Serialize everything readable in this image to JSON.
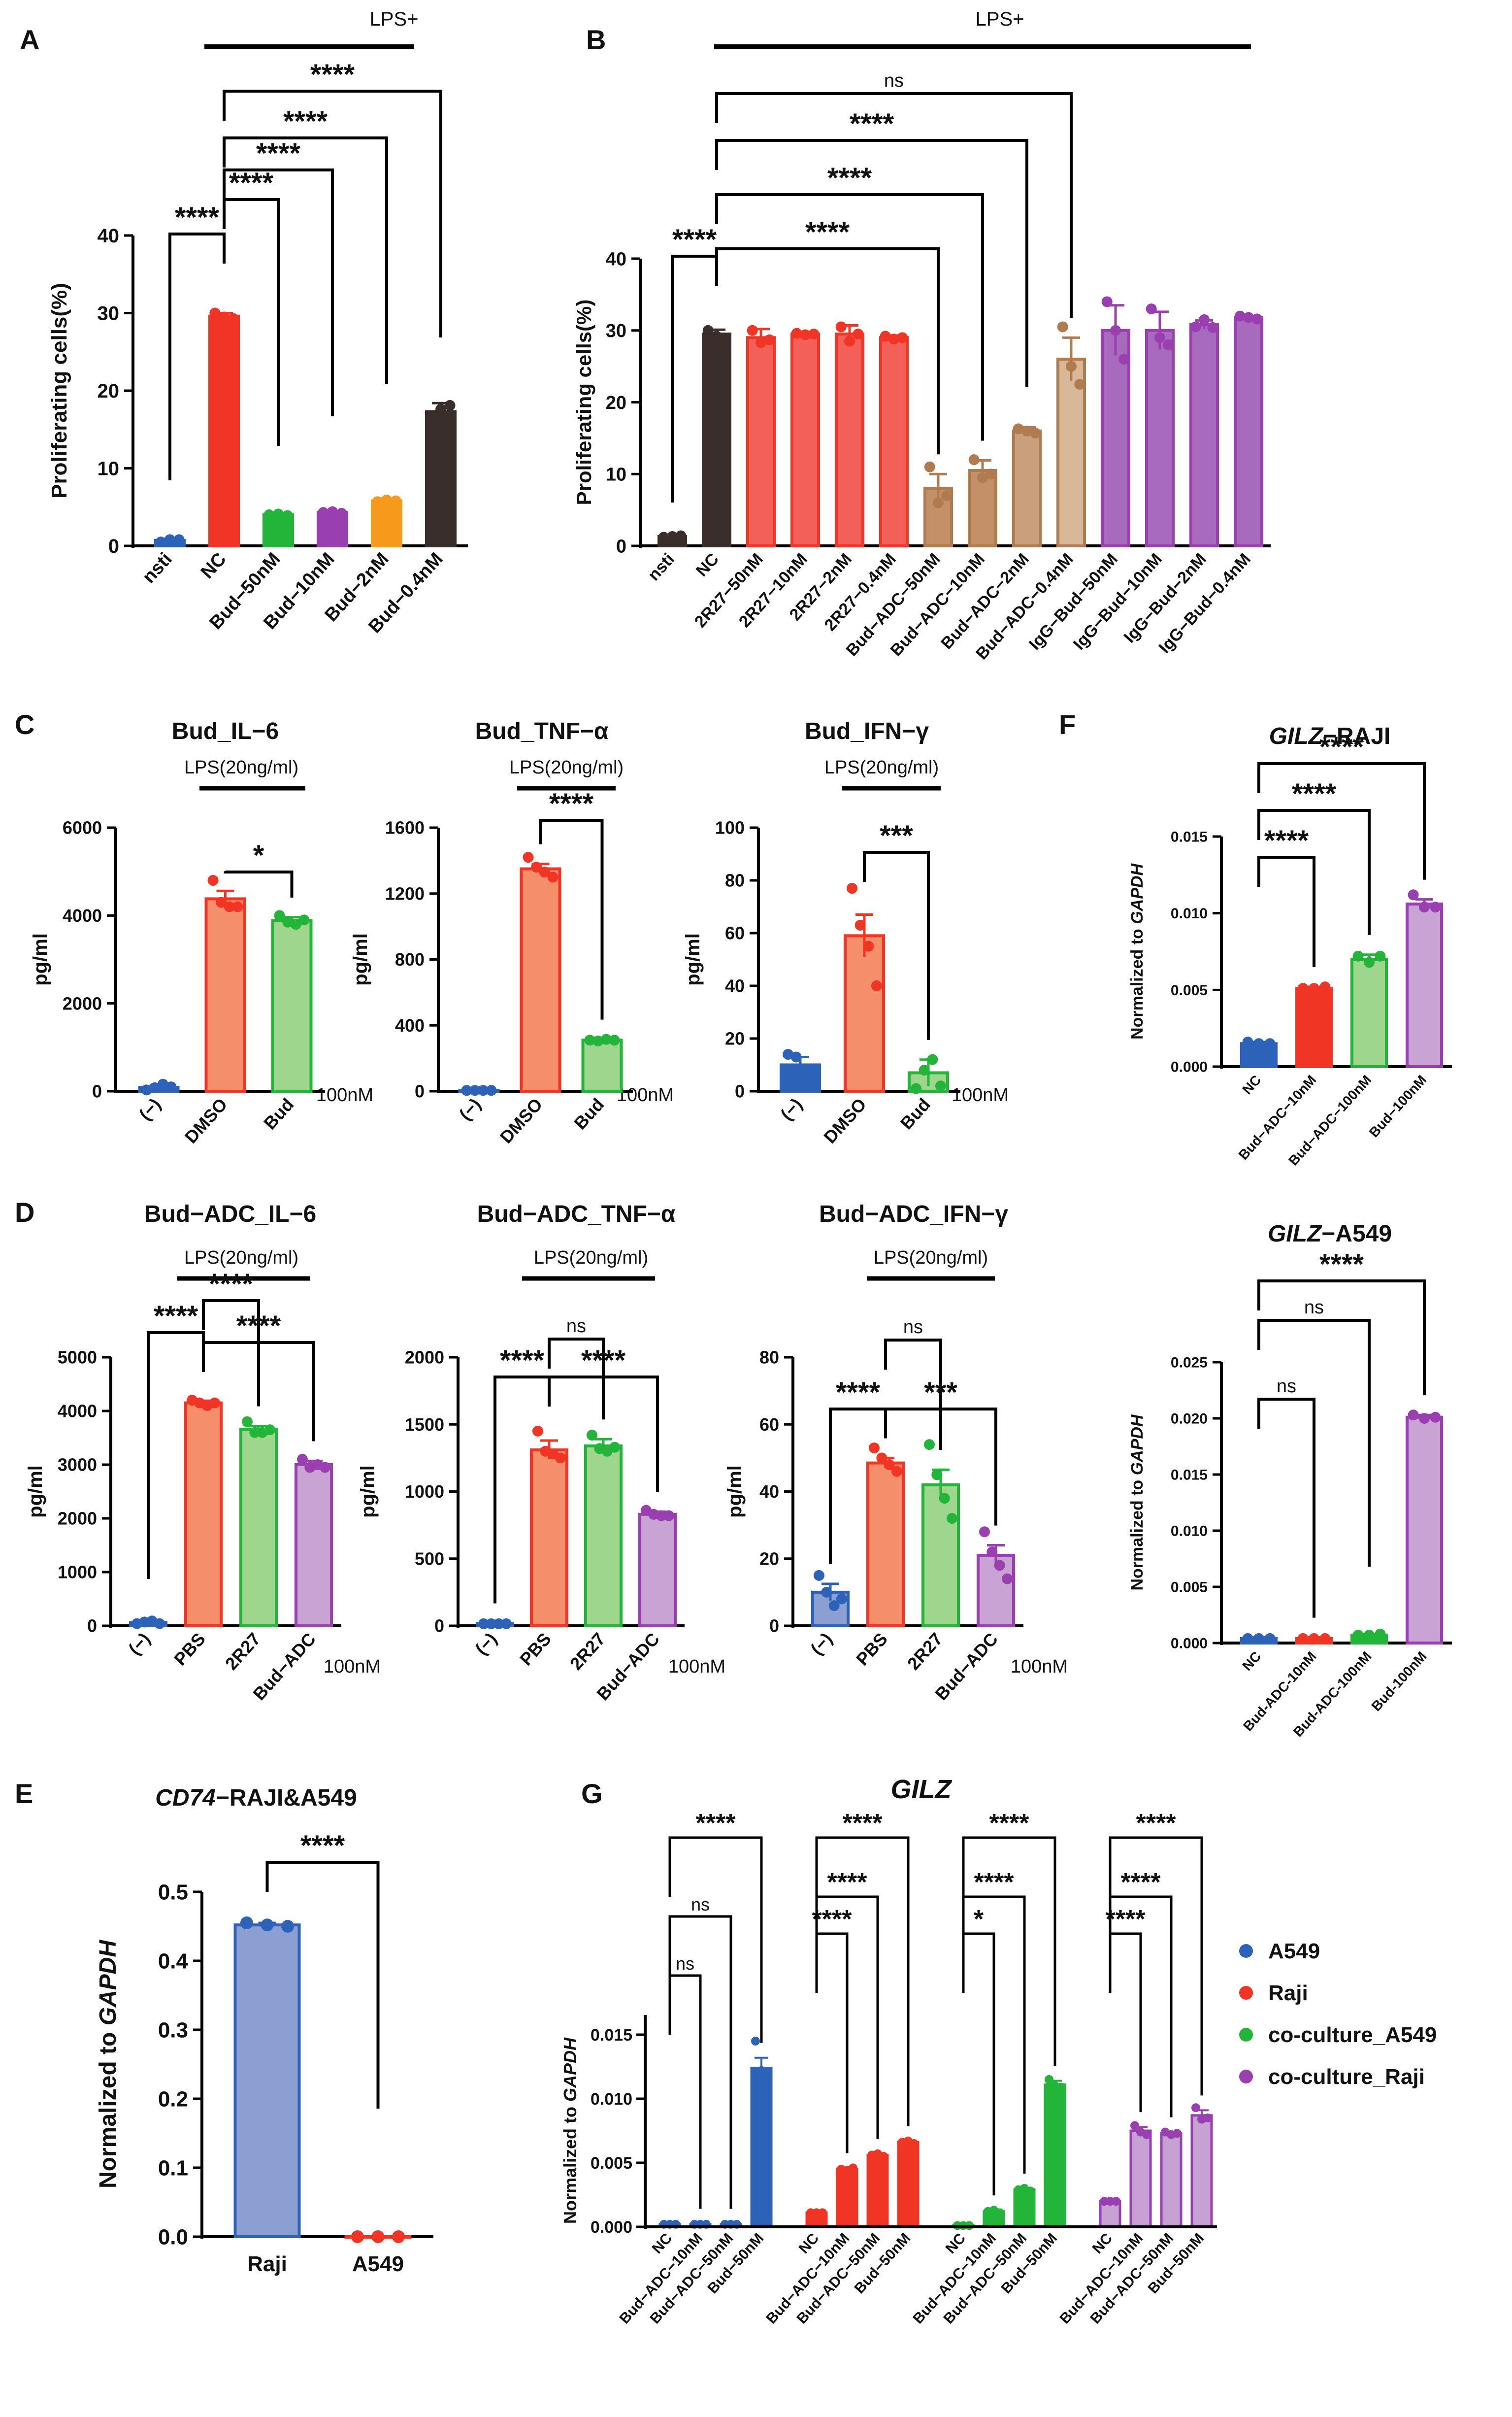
{
  "panel_letters": [
    "A",
    "B",
    "C",
    "D",
    "E",
    "F",
    "G"
  ],
  "common": {
    "lps_plus": "LPS+",
    "lps_20": "LPS(20ng/ml)",
    "unit_100nm": "100nM",
    "ylabel_prolif": "Proliferating cells(%)",
    "ylabel_pgml": "pg/ml",
    "ylabel_gapdh_prefix": "Normalized to ",
    "gapdh": "GAPDH"
  },
  "colors": {
    "blue": "#2c63b8",
    "red": "#f03524",
    "green": "#22b53a",
    "purple": "#9a3fb0",
    "orange": "#f79a1c",
    "dark": "#3a2e2c",
    "brown": "#b07c4f",
    "salmon_fill": "#f58e6b",
    "lightgreen_fill": "#9fd68e",
    "lightpurple_fill": "#c9a3d3",
    "blue_fill": "#8b9fd3",
    "red_fill": "#fb8c84",
    "green_fill": "#8cd68e",
    "purple_fill": "#c7a0d4"
  },
  "chart_data": [
    {
      "id": "A",
      "type": "bar",
      "title": "",
      "ylabel": "Proliferating cells(%)",
      "ylim": [
        0,
        40
      ],
      "yticks": [
        0,
        10,
        20,
        30,
        40
      ],
      "categories": [
        "nsti",
        "NC",
        "Bud-50nM",
        "Bud-10nM",
        "Bud-2nM",
        "Bud-0.4nM"
      ],
      "category_labels": [
        "nsti",
        "NC",
        "Bud−50nM",
        "Bud−10nM",
        "Bud−2nM",
        "Bud−0.4nM"
      ],
      "values": [
        0.7,
        29.6,
        4.0,
        4.3,
        5.8,
        17.3
      ],
      "errors": [
        0.2,
        0.4,
        0.2,
        0.2,
        0.3,
        1.1
      ],
      "points": [
        [
          0.5,
          0.8,
          0.8
        ],
        [
          30.0,
          29.5,
          29.3
        ],
        [
          4.0,
          4.1,
          3.9
        ],
        [
          4.3,
          4.4,
          4.2
        ],
        [
          5.7,
          5.9,
          5.8
        ],
        [
          16.2,
          17.6,
          18.1
        ]
      ],
      "significance": [
        {
          "label": "****",
          "from": "nsti",
          "to": "NC"
        },
        {
          "label": "****",
          "from": "NC",
          "to": "Bud-50nM"
        },
        {
          "label": "****",
          "from": "NC",
          "to": "Bud-10nM"
        },
        {
          "label": "****",
          "from": "NC",
          "to": "Bud-2nM"
        },
        {
          "label": "****",
          "from": "NC",
          "to": "Bud-0.4nM"
        }
      ],
      "annotations": [
        "LPS+"
      ]
    },
    {
      "id": "B",
      "type": "bar",
      "title": "",
      "ylabel": "Proliferating cells(%)",
      "ylim": [
        0,
        40
      ],
      "yticks": [
        0,
        10,
        20,
        30,
        40
      ],
      "categories": [
        "nsti",
        "NC",
        "2R27-50nM",
        "2R27-10nM",
        "2R27-2nM",
        "2R27-0.4nM",
        "Bud-ADC-50nM",
        "Bud-ADC-10nM",
        "Bud-ADC-2nM",
        "Bud-ADC-0.4nM",
        "IgG-Bud-50nM",
        "IgG-Bud-10nM",
        "IgG-Bud-2nM",
        "IgG-Bud-0.4nM"
      ],
      "category_labels": [
        "nsti",
        "NC",
        "2R27−50nM",
        "2R27−10nM",
        "2R27−2nM",
        "2R27−0.4nM",
        "Bud−ADC−50nM",
        "Bud−ADC−10nM",
        "Bud−ADC−2nM",
        "Bud−ADC−0.4nM",
        "IgG−Bud−50nM",
        "IgG−Bud−10nM",
        "IgG−Bud−2nM",
        "IgG−Bud−0.4nM"
      ],
      "values": [
        1.3,
        29.5,
        29.0,
        29.5,
        29.5,
        29.0,
        8.0,
        10.5,
        16.0,
        26.0,
        30.0,
        30.0,
        30.8,
        31.8
      ],
      "errors": [
        0.2,
        0.6,
        1.2,
        0.2,
        1.2,
        0.3,
        2.0,
        1.4,
        0.5,
        3.0,
        3.5,
        2.6,
        0.6,
        0.2
      ],
      "points": [
        [
          1.2,
          1.3,
          1.4
        ],
        [
          30.0,
          29.2,
          28.8
        ],
        [
          30.0,
          28.3,
          28.7
        ],
        [
          29.6,
          29.4,
          29.5
        ],
        [
          30.5,
          28.5,
          29.5
        ],
        [
          29.2,
          28.8,
          29.0
        ],
        [
          11.0,
          6.0,
          7.0
        ],
        [
          12.0,
          9.5,
          10.0
        ],
        [
          16.3,
          16.0,
          15.7
        ],
        [
          30.5,
          25.0,
          22.5
        ],
        [
          34.0,
          30.0,
          26.0
        ],
        [
          33.0,
          29.0,
          28.0
        ],
        [
          30.5,
          31.5,
          30.4
        ],
        [
          32.0,
          31.8,
          31.6
        ]
      ],
      "significance": [
        {
          "label": "****",
          "from": "nsti",
          "to": "NC"
        },
        {
          "label": "****",
          "from": "NC",
          "to": "Bud-ADC-50nM"
        },
        {
          "label": "****",
          "from": "NC",
          "to": "Bud-ADC-10nM"
        },
        {
          "label": "****",
          "from": "NC",
          "to": "Bud-ADC-2nM"
        },
        {
          "label": "ns",
          "from": "NC",
          "to": "Bud-ADC-0.4nM"
        }
      ],
      "annotations": [
        "LPS+"
      ]
    },
    {
      "id": "C1",
      "type": "bar",
      "title": "Bud_IL−6",
      "ylabel": "pg/ml",
      "ylim": [
        0,
        6000
      ],
      "yticks": [
        0,
        2000,
        4000,
        6000
      ],
      "categories": [
        "(−)",
        "DMSO",
        "Bud"
      ],
      "values": [
        90,
        4380,
        3880
      ],
      "errors": [
        50,
        180,
        80
      ],
      "points": [
        [
          30,
          80,
          160,
          100
        ],
        [
          4800,
          4300,
          4200,
          4200
        ],
        [
          4000,
          3850,
          3800,
          3900
        ]
      ],
      "significance": [
        {
          "label": "*",
          "from": "DMSO",
          "to": "Bud"
        }
      ],
      "annotations": [
        "LPS(20ng/ml)",
        "100nM"
      ]
    },
    {
      "id": "C2",
      "type": "bar",
      "title": "Bud_TNF−α",
      "ylabel": "pg/ml",
      "ylim": [
        0,
        1600
      ],
      "yticks": [
        0,
        400,
        800,
        1200,
        1600
      ],
      "categories": [
        "(−)",
        "DMSO",
        "Bud"
      ],
      "values": [
        5,
        1350,
        310
      ],
      "errors": [
        2,
        30,
        5
      ],
      "points": [
        [
          5,
          5,
          5,
          5
        ],
        [
          1420,
          1360,
          1330,
          1300
        ],
        [
          310,
          305,
          315,
          310
        ]
      ],
      "significance": [
        {
          "label": "****",
          "from": "DMSO",
          "to": "Bud"
        }
      ],
      "annotations": [
        "LPS(20ng/ml)",
        "100nM"
      ]
    },
    {
      "id": "C3",
      "type": "bar",
      "title": "Bud_IFN−γ",
      "ylabel": "pg/ml",
      "ylim": [
        0,
        100
      ],
      "yticks": [
        0,
        20,
        40,
        60,
        80,
        100
      ],
      "categories": [
        "(−)",
        "DMSO",
        "Bud"
      ],
      "values": [
        10,
        59,
        7
      ],
      "errors": [
        3,
        8,
        5
      ],
      "points": [
        [
          14,
          13,
          6,
          8
        ],
        [
          77,
          63,
          55,
          40
        ],
        [
          1,
          8,
          12,
          2
        ]
      ],
      "significance": [
        {
          "label": "***",
          "from": "DMSO",
          "to": "Bud"
        }
      ],
      "annotations": [
        "LPS(20ng/ml)",
        "100nM"
      ]
    },
    {
      "id": "D1",
      "type": "bar",
      "title": "Bud−ADC_IL−6",
      "ylabel": "pg/ml",
      "ylim": [
        0,
        5000
      ],
      "yticks": [
        0,
        1000,
        2000,
        3000,
        4000,
        5000
      ],
      "categories": [
        "(−)",
        "PBS",
        "2R27",
        "Bud−ADC"
      ],
      "values": [
        60,
        4150,
        3660,
        3000
      ],
      "errors": [
        30,
        40,
        60,
        70
      ],
      "points": [
        [
          40,
          70,
          90,
          40
        ],
        [
          4200,
          4150,
          4100,
          4150
        ],
        [
          3800,
          3600,
          3600,
          3650
        ],
        [
          3100,
          2950,
          3000,
          2950
        ]
      ],
      "significance": [
        {
          "label": "****",
          "from": "(−)",
          "to": "PBS"
        },
        {
          "label": "****",
          "from": "PBS",
          "to": "2R27"
        },
        {
          "label": "****",
          "from": "PBS",
          "to": "Bud−ADC"
        }
      ],
      "annotations": [
        "LPS(20ng/ml)",
        "100nM"
      ]
    },
    {
      "id": "D2",
      "type": "bar",
      "title": "Bud−ADC_TNF−α",
      "ylabel": "pg/ml",
      "ylim": [
        0,
        2000
      ],
      "yticks": [
        0,
        500,
        1000,
        1500,
        2000
      ],
      "categories": [
        "(−)",
        "PBS",
        "2R27",
        "Bud−ADC"
      ],
      "values": [
        15,
        1310,
        1340,
        830
      ],
      "errors": [
        5,
        70,
        50,
        20
      ],
      "points": [
        [
          15,
          15,
          15,
          15
        ],
        [
          1450,
          1300,
          1280,
          1250
        ],
        [
          1420,
          1320,
          1300,
          1330
        ],
        [
          860,
          830,
          820,
          820
        ]
      ],
      "significance": [
        {
          "label": "****",
          "from": "(−)",
          "to": "PBS"
        },
        {
          "label": "ns",
          "from": "PBS",
          "to": "2R27"
        },
        {
          "label": "****",
          "from": "PBS",
          "to": "Bud−ADC"
        }
      ],
      "annotations": [
        "LPS(20ng/ml)",
        "100nM"
      ]
    },
    {
      "id": "D3",
      "type": "bar",
      "title": "Bud−ADC_IFN−γ",
      "ylabel": "pg/ml",
      "ylim": [
        0,
        80
      ],
      "yticks": [
        0,
        20,
        40,
        60,
        80
      ],
      "categories": [
        "(−)",
        "PBS",
        "2R27",
        "Bud−ADC"
      ],
      "values": [
        10,
        48.5,
        42,
        21
      ],
      "errors": [
        2.5,
        1.5,
        4.5,
        3.0
      ],
      "points": [
        [
          15,
          10,
          6,
          8
        ],
        [
          53,
          50,
          48,
          46
        ],
        [
          54,
          45,
          38,
          32
        ],
        [
          28,
          22,
          18,
          14
        ]
      ],
      "significance": [
        {
          "label": "****",
          "from": "(−)",
          "to": "PBS"
        },
        {
          "label": "ns",
          "from": "PBS",
          "to": "2R27"
        },
        {
          "label": "***",
          "from": "PBS",
          "to": "Bud−ADC"
        }
      ],
      "annotations": [
        "LPS(20ng/ml)",
        "100nM"
      ]
    },
    {
      "id": "E",
      "type": "bar",
      "title": "CD74−RAJI&A549",
      "ylabel": "Normalized to GAPDH",
      "ylim": [
        0,
        0.5
      ],
      "yticks": [
        0.0,
        0.1,
        0.2,
        0.3,
        0.4,
        0.5
      ],
      "categories": [
        "Raji",
        "A549"
      ],
      "values": [
        0.452,
        0.0
      ],
      "errors": [
        0.003,
        0.0
      ],
      "points": [
        [
          0.455,
          0.452,
          0.45
        ],
        [
          0.0,
          0.0,
          0.0
        ]
      ],
      "significance": [
        {
          "label": "****",
          "from": "Raji",
          "to": "A549"
        }
      ]
    },
    {
      "id": "F1",
      "type": "bar",
      "title": "GILZ−RAJI",
      "ylabel": "Normalized to GAPDH",
      "ylim": [
        0,
        0.015
      ],
      "yticks": [
        0.0,
        0.005,
        0.01,
        0.015
      ],
      "categories": [
        "NC",
        "Bud−ADC−10nM",
        "Bud−ADC−100nM",
        "Bud−100nM"
      ],
      "values": [
        0.0015,
        0.0051,
        0.007,
        0.0106
      ],
      "errors": [
        0.0001,
        0.0001,
        0.0003,
        0.0003
      ],
      "points": [
        [
          0.0016,
          0.0015,
          0.0015
        ],
        [
          0.0051,
          0.0051,
          0.0052
        ],
        [
          0.0072,
          0.0068,
          0.0072
        ],
        [
          0.0112,
          0.0104,
          0.0104
        ]
      ],
      "significance": [
        {
          "label": "****",
          "from": "NC",
          "to": "Bud−ADC−10nM"
        },
        {
          "label": "****",
          "from": "NC",
          "to": "Bud−ADC−100nM"
        },
        {
          "label": "****",
          "from": "NC",
          "to": "Bud−100nM"
        }
      ]
    },
    {
      "id": "F2",
      "type": "bar",
      "title": "GILZ−A549",
      "ylabel": "Normalized to GAPDH",
      "ylim": [
        0,
        0.025
      ],
      "yticks": [
        0.0,
        0.005,
        0.01,
        0.015,
        0.02,
        0.025
      ],
      "categories": [
        "NC",
        "Bud-ADC-10nM",
        "Bud-ADC-100nM",
        "Bud-100nM"
      ],
      "values": [
        0.0004,
        0.0004,
        0.0007,
        0.0201
      ],
      "errors": [
        0.0001,
        0.0001,
        0.0001,
        0.0002
      ],
      "points": [
        [
          0.0004,
          0.0004,
          0.0004
        ],
        [
          0.0004,
          0.0004,
          0.0004
        ],
        [
          0.0007,
          0.0007,
          0.0008
        ],
        [
          0.0203,
          0.02,
          0.0201
        ]
      ],
      "significance": [
        {
          "label": "ns",
          "from": "NC",
          "to": "Bud-ADC-10nM"
        },
        {
          "label": "ns",
          "from": "NC",
          "to": "Bud-ADC-100nM"
        },
        {
          "label": "****",
          "from": "NC",
          "to": "Bud-100nM"
        }
      ]
    },
    {
      "id": "G",
      "type": "bar",
      "title": "GILZ",
      "ylabel": "Normalized to GAPDH",
      "ylim": [
        0,
        0.015
      ],
      "yticks": [
        0.0,
        0.005,
        0.01,
        0.015
      ],
      "categories": [
        "NC",
        "Bud−ADC−10nM",
        "Bud−ADC−50nM",
        "Bud−50nM"
      ],
      "series": [
        {
          "name": "A549",
          "values": [
            0.0002,
            0.0002,
            0.0002,
            0.0124
          ],
          "errors": [
            5e-05,
            5e-05,
            5e-05,
            0.0008
          ],
          "points": [
            [
              0.0002,
              0.0002,
              0.0002
            ],
            [
              0.0002,
              0.0002,
              0.0002
            ],
            [
              0.0002,
              0.0002,
              0.0002
            ],
            [
              0.0145,
              0.0122,
              0.0118
            ]
          ]
        },
        {
          "name": "Raji",
          "values": [
            0.0011,
            0.0045,
            0.0056,
            0.0066
          ],
          "errors": [
            5e-05,
            0.0001,
            0.0001,
            0.0001
          ],
          "points": [
            [
              0.0011,
              0.0011,
              0.0011
            ],
            [
              0.0045,
              0.0044,
              0.0046
            ],
            [
              0.0056,
              0.0057,
              0.0055
            ],
            [
              0.0066,
              0.0067,
              0.0065
            ]
          ]
        },
        {
          "name": "co-culture_A549",
          "values": [
            0.0001,
            0.0012,
            0.0029,
            0.0111
          ],
          "errors": [
            5e-05,
            0.0001,
            0.0001,
            0.0003
          ],
          "points": [
            [
              0.0001,
              0.0001,
              0.0001
            ],
            [
              0.0012,
              0.0013,
              0.0011
            ],
            [
              0.0029,
              0.003,
              0.0028
            ],
            [
              0.0115,
              0.011,
              0.0109
            ]
          ]
        },
        {
          "name": "co-culture_Raji",
          "values": [
            0.002,
            0.0075,
            0.0073,
            0.0087
          ],
          "errors": [
            0.0001,
            0.0003,
            0.0001,
            0.0004
          ],
          "points": [
            [
              0.002,
              0.002,
              0.002
            ],
            [
              0.0079,
              0.0074,
              0.0072
            ],
            [
              0.0074,
              0.0072,
              0.0073
            ],
            [
              0.0093,
              0.0084,
              0.0085
            ]
          ]
        }
      ],
      "significance": [
        {
          "series": "A549",
          "items": [
            [
              "NC",
              "Bud−ADC−10nM",
              "ns"
            ],
            [
              "NC",
              "Bud−ADC−50nM",
              "ns"
            ],
            [
              "NC",
              "Bud−50nM",
              "****"
            ]
          ]
        },
        {
          "series": "Raji",
          "items": [
            [
              "NC",
              "Bud−ADC−10nM",
              "****"
            ],
            [
              "NC",
              "Bud−ADC−50nM",
              "****"
            ],
            [
              "NC",
              "Bud−50nM",
              "****"
            ]
          ]
        },
        {
          "series": "co-culture_A549",
          "items": [
            [
              "NC",
              "Bud−ADC−10nM",
              "*"
            ],
            [
              "NC",
              "Bud−ADC−50nM",
              "****"
            ],
            [
              "NC",
              "Bud−50nM",
              "****"
            ]
          ]
        },
        {
          "series": "co-culture_Raji",
          "items": [
            [
              "NC",
              "Bud−ADC−10nM",
              "****"
            ],
            [
              "NC",
              "Bud−ADC−50nM",
              "****"
            ],
            [
              "NC",
              "Bud−50nM",
              "****"
            ]
          ]
        }
      ],
      "legend": [
        "A549",
        "Raji",
        "co-culture_A549",
        "co-culture_Raji"
      ]
    }
  ]
}
